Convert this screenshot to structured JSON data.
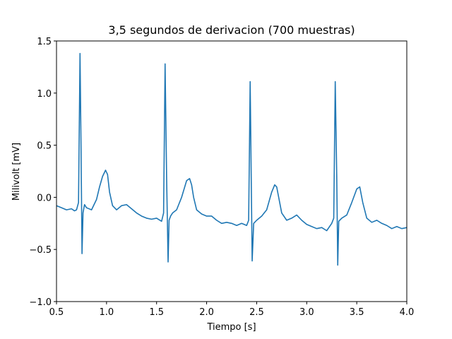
{
  "chart_data": {
    "type": "line",
    "title": "3,5 segundos de derivacion (700 muestras)",
    "xlabel": "Tiempo [s]",
    "ylabel": "Milivolt [mV]",
    "xlim": [
      0.5,
      4.0
    ],
    "ylim": [
      -1.0,
      1.5
    ],
    "xticks": [
      0.5,
      1.0,
      1.5,
      2.0,
      2.5,
      3.0,
      3.5,
      4.0
    ],
    "xtick_labels": [
      "0.5",
      "1.0",
      "1.5",
      "2.0",
      "2.5",
      "3.0",
      "3.5",
      "4.0"
    ],
    "yticks": [
      -1.0,
      -0.5,
      0.0,
      0.5,
      1.0,
      1.5
    ],
    "ytick_labels": [
      "−1.0",
      "−0.5",
      "0.0",
      "0.5",
      "1.0",
      "1.5"
    ],
    "grid": false,
    "line_color": "#1f77b4",
    "series": [
      {
        "x": [
          0.5,
          0.55,
          0.6,
          0.65,
          0.68,
          0.7,
          0.72,
          0.735,
          0.745,
          0.755,
          0.765,
          0.78,
          0.8,
          0.85,
          0.9,
          0.93,
          0.96,
          0.99,
          1.01,
          1.03,
          1.06,
          1.1,
          1.15,
          1.2,
          1.25,
          1.3,
          1.35,
          1.4,
          1.45,
          1.5,
          1.55,
          1.57,
          1.585,
          1.6,
          1.615,
          1.625,
          1.64,
          1.66,
          1.7,
          1.75,
          1.8,
          1.83,
          1.85,
          1.87,
          1.9,
          1.95,
          2.0,
          2.05,
          2.1,
          2.15,
          2.2,
          2.25,
          2.3,
          2.35,
          2.4,
          2.42,
          2.435,
          2.445,
          2.455,
          2.47,
          2.5,
          2.55,
          2.6,
          2.65,
          2.68,
          2.7,
          2.72,
          2.75,
          2.8,
          2.85,
          2.9,
          2.95,
          3.0,
          3.05,
          3.1,
          3.15,
          3.2,
          3.25,
          3.27,
          3.285,
          3.3,
          3.31,
          3.32,
          3.35,
          3.4,
          3.45,
          3.5,
          3.53,
          3.56,
          3.6,
          3.65,
          3.7,
          3.75,
          3.8,
          3.85,
          3.9,
          3.95,
          4.0
        ],
        "y": [
          -0.08,
          -0.1,
          -0.12,
          -0.11,
          -0.13,
          -0.12,
          -0.05,
          1.38,
          0.5,
          -0.54,
          -0.15,
          -0.07,
          -0.1,
          -0.12,
          -0.02,
          0.1,
          0.2,
          0.26,
          0.22,
          0.05,
          -0.08,
          -0.12,
          -0.08,
          -0.07,
          -0.11,
          -0.15,
          -0.18,
          -0.2,
          -0.21,
          -0.2,
          -0.23,
          -0.15,
          1.28,
          0.2,
          -0.62,
          -0.22,
          -0.18,
          -0.15,
          -0.12,
          0.0,
          0.16,
          0.18,
          0.12,
          0.0,
          -0.12,
          -0.16,
          -0.18,
          -0.18,
          -0.22,
          -0.25,
          -0.24,
          -0.25,
          -0.27,
          -0.25,
          -0.27,
          -0.22,
          1.11,
          0.25,
          -0.61,
          -0.25,
          -0.22,
          -0.18,
          -0.12,
          0.05,
          0.12,
          0.1,
          0.0,
          -0.15,
          -0.22,
          -0.2,
          -0.17,
          -0.22,
          -0.26,
          -0.28,
          -0.3,
          -0.29,
          -0.32,
          -0.25,
          -0.2,
          1.11,
          0.2,
          -0.65,
          -0.23,
          -0.2,
          -0.17,
          -0.05,
          0.08,
          0.1,
          -0.05,
          -0.2,
          -0.24,
          -0.22,
          -0.25,
          -0.27,
          -0.3,
          -0.28,
          -0.3,
          -0.29
        ]
      }
    ]
  }
}
